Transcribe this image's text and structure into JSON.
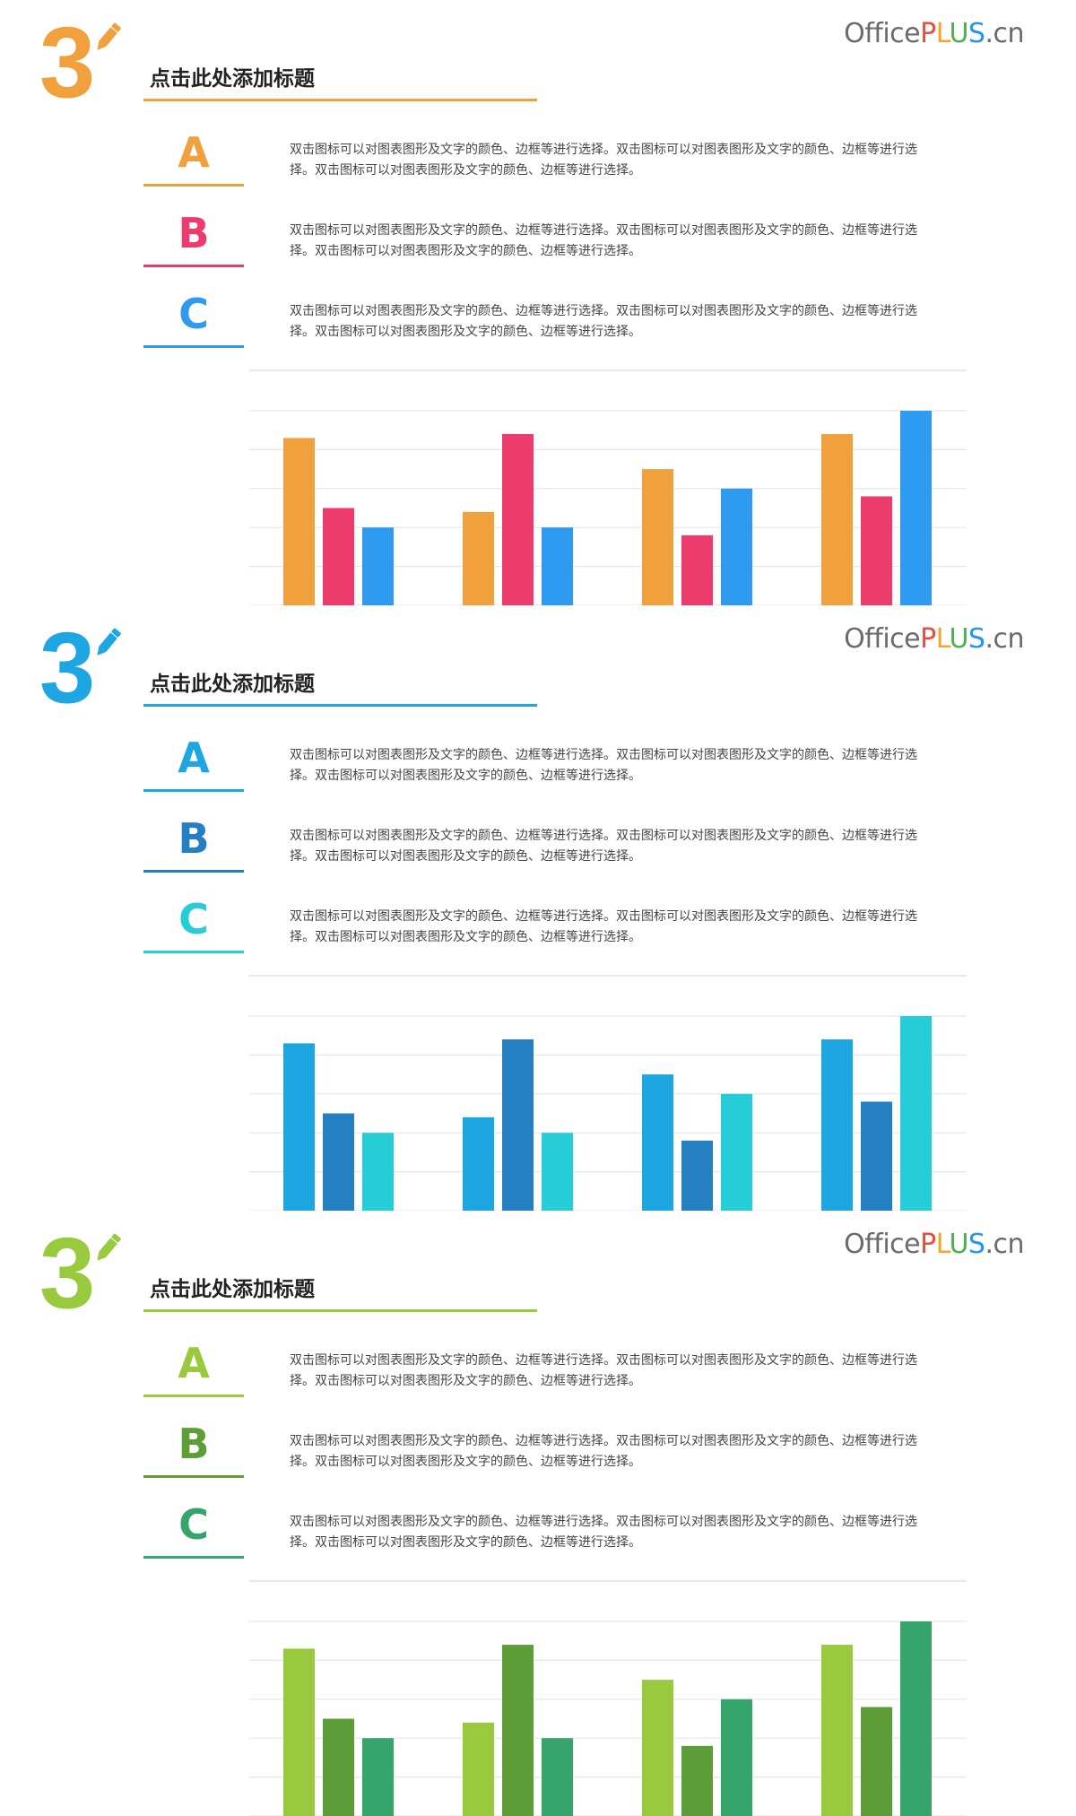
{
  "slides": [
    {
      "number": "3",
      "title": "点击此处添加标题",
      "brand": {
        "office": "Office",
        "plus": [
          "P",
          "L",
          "U",
          "S"
        ],
        "cn": ".cn",
        "plus_colors": [
          "#e94e3c",
          "#f5a623",
          "#4caf50",
          "#2196f3"
        ]
      },
      "accent": "#f0a03c",
      "pencil_color": "#f0a03c",
      "items": [
        {
          "letter": "A",
          "color": "#f0a03c",
          "text": "双击图标可以对图表图形及文字的颜色、边框等进行选择。双击图标可以对图表图形及文字的颜色、边框等进行选择。双击图标可以对图表图形及文字的颜色、边框等进行选择。"
        },
        {
          "letter": "B",
          "color": "#ec3b6c",
          "text": "双击图标可以对图表图形及文字的颜色、边框等进行选择。双击图标可以对图表图形及文字的颜色、边框等进行选择。双击图标可以对图表图形及文字的颜色、边框等进行选择。"
        },
        {
          "letter": "C",
          "color": "#2f9bf0",
          "text": "双击图标可以对图表图形及文字的颜色、边框等进行选择。双击图标可以对图表图形及文字的颜色、边框等进行选择。双击图标可以对图表图形及文字的颜色、边框等进行选择。"
        }
      ]
    },
    {
      "number": "3",
      "title": "点击此处添加标题",
      "brand": {
        "office": "Office",
        "plus": [
          "P",
          "L",
          "U",
          "S"
        ],
        "cn": ".cn",
        "plus_colors": [
          "#e94e3c",
          "#f5a623",
          "#4caf50",
          "#2196f3"
        ]
      },
      "accent": "#1ea6e2",
      "pencil_color": "#1ea6e2",
      "items": [
        {
          "letter": "A",
          "color": "#1ea6e2",
          "text": "双击图标可以对图表图形及文字的颜色、边框等进行选择。双击图标可以对图表图形及文字的颜色、边框等进行选择。双击图标可以对图表图形及文字的颜色、边框等进行选择。"
        },
        {
          "letter": "B",
          "color": "#2580c3",
          "text": "双击图标可以对图表图形及文字的颜色、边框等进行选择。双击图标可以对图表图形及文字的颜色、边框等进行选择。双击图标可以对图表图形及文字的颜色、边框等进行选择。"
        },
        {
          "letter": "C",
          "color": "#27cdd6",
          "text": "双击图标可以对图表图形及文字的颜色、边框等进行选择。双击图标可以对图表图形及文字的颜色、边框等进行选择。双击图标可以对图表图形及文字的颜色、边框等进行选择。"
        }
      ]
    },
    {
      "number": "3",
      "title": "点击此处添加标题",
      "brand": {
        "office": "Office",
        "plus": [
          "P",
          "L",
          "U",
          "S"
        ],
        "cn": ".cn",
        "plus_colors": [
          "#e94e3c",
          "#f5a623",
          "#4caf50",
          "#2196f3"
        ]
      },
      "accent": "#99c93d",
      "pencil_color": "#99c93d",
      "items": [
        {
          "letter": "A",
          "color": "#99c93d",
          "text": "双击图标可以对图表图形及文字的颜色、边框等进行选择。双击图标可以对图表图形及文字的颜色、边框等进行选择。双击图标可以对图表图形及文字的颜色、边框等进行选择。"
        },
        {
          "letter": "B",
          "color": "#5e9e38",
          "text": "双击图标可以对图表图形及文字的颜色、边框等进行选择。双击图标可以对图表图形及文字的颜色、边框等进行选择。双击图标可以对图表图形及文字的颜色、边框等进行选择。"
        },
        {
          "letter": "C",
          "color": "#35a56b",
          "text": "双击图标可以对图表图形及文字的颜色、边框等进行选择。双击图标可以对图表图形及文字的颜色、边框等进行选择。双击图标可以对图表图形及文字的颜色、边框等进行选择。"
        }
      ]
    }
  ],
  "chart_data": [
    {
      "type": "bar",
      "grid": true,
      "ylim": [
        0,
        5
      ],
      "categories": [
        "",
        "",
        "",
        ""
      ],
      "series": [
        {
          "values": [
            4.3,
            2.4,
            3.5,
            4.4
          ],
          "color": "#f0a03c"
        },
        {
          "values": [
            2.5,
            4.4,
            1.8,
            2.8
          ],
          "color": "#ec3b6c"
        },
        {
          "values": [
            2.0,
            2.0,
            3.0,
            5.0
          ],
          "color": "#2f9bf0"
        }
      ]
    },
    {
      "type": "bar",
      "grid": true,
      "ylim": [
        0,
        5
      ],
      "categories": [
        "",
        "",
        "",
        ""
      ],
      "series": [
        {
          "values": [
            4.3,
            2.4,
            3.5,
            4.4
          ],
          "color": "#1ea6e2"
        },
        {
          "values": [
            2.5,
            4.4,
            1.8,
            2.8
          ],
          "color": "#2580c3"
        },
        {
          "values": [
            2.0,
            2.0,
            3.0,
            5.0
          ],
          "color": "#27cdd6"
        }
      ]
    },
    {
      "type": "bar",
      "grid": true,
      "ylim": [
        0,
        5
      ],
      "categories": [
        "",
        "",
        "",
        ""
      ],
      "series": [
        {
          "values": [
            4.3,
            2.4,
            3.5,
            4.4
          ],
          "color": "#99c93d"
        },
        {
          "values": [
            2.5,
            4.4,
            1.8,
            2.8
          ],
          "color": "#5e9e38"
        },
        {
          "values": [
            2.0,
            2.0,
            3.0,
            5.0
          ],
          "color": "#35a56b"
        }
      ]
    }
  ]
}
